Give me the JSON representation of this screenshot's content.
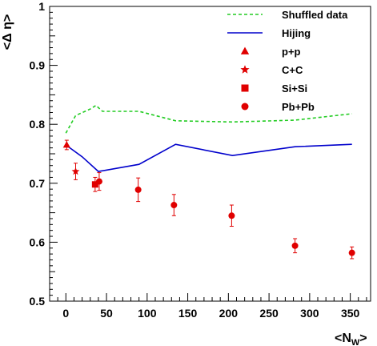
{
  "chart_data": {
    "type": "scatter",
    "xlabel_main": "<N",
    "xlabel_sub": "W",
    "xlabel_end": ">",
    "ylabel": "<Δ η>",
    "xlim": [
      -20,
      375
    ],
    "ylim": [
      0.5,
      1.0
    ],
    "x_ticks": [
      "0",
      "50",
      "100",
      "150",
      "200",
      "250",
      "300",
      "350"
    ],
    "y_ticks": [
      "0.5",
      "0.6",
      "0.7",
      "0.8",
      "0.9",
      "1"
    ],
    "grid": false,
    "legend_position": "top-right",
    "lines": [
      {
        "name": "Shuffled data",
        "color": "#22cc22",
        "style": "dashed",
        "x": [
          0,
          12,
          30,
          37,
          45,
          90,
          135,
          205,
          282,
          352
        ],
        "y": [
          0.785,
          0.815,
          0.826,
          0.832,
          0.822,
          0.822,
          0.806,
          0.804,
          0.807,
          0.818
        ]
      },
      {
        "name": "Hijing",
        "color": "#0000cc",
        "style": "solid",
        "x": [
          0,
          20,
          40,
          90,
          135,
          205,
          282,
          352
        ],
        "y": [
          0.765,
          0.745,
          0.72,
          0.732,
          0.766,
          0.747,
          0.762,
          0.766
        ]
      }
    ],
    "points": [
      {
        "name": "p+p",
        "marker": "triangle",
        "color": "#e00000",
        "x": [
          1
        ],
        "y": [
          0.765
        ],
        "err": [
          0.008
        ]
      },
      {
        "name": "C+C",
        "marker": "star",
        "color": "#e00000",
        "x": [
          12
        ],
        "y": [
          0.72
        ],
        "err": [
          0.014
        ]
      },
      {
        "name": "Si+Si",
        "marker": "square",
        "color": "#e00000",
        "x": [
          36
        ],
        "y": [
          0.698
        ],
        "err": [
          0.012
        ]
      },
      {
        "name": "Pb+Pb",
        "marker": "circle",
        "color": "#e00000",
        "x": [
          41,
          89,
          133,
          204,
          282,
          352
        ],
        "y": [
          0.703,
          0.689,
          0.663,
          0.645,
          0.594,
          0.582
        ],
        "err": [
          0.015,
          0.02,
          0.018,
          0.018,
          0.012,
          0.01
        ]
      }
    ]
  }
}
